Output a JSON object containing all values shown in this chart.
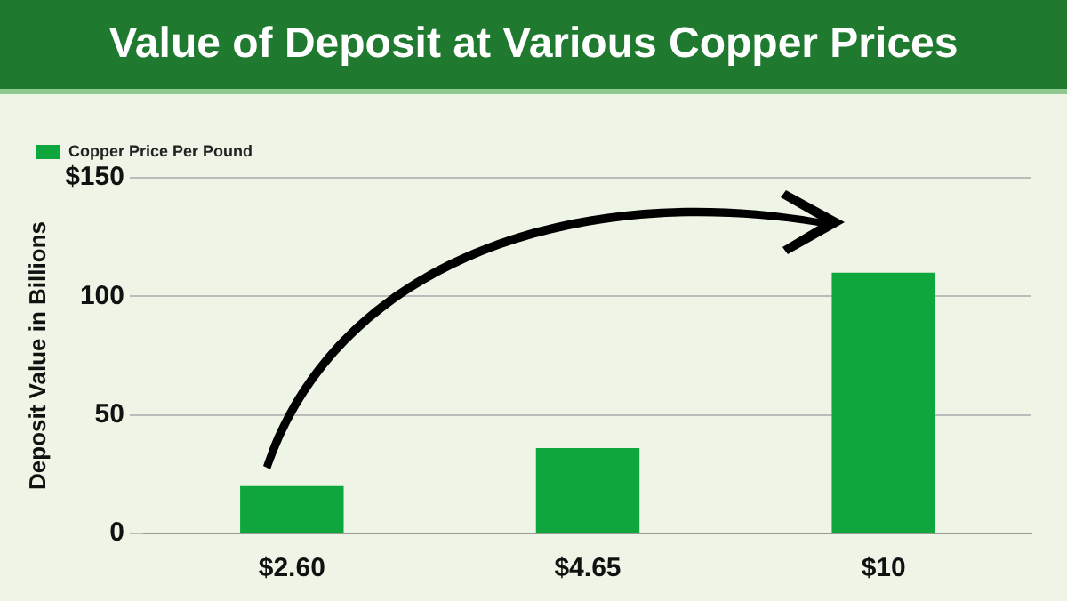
{
  "chart_data": {
    "type": "bar",
    "title": "Value of Deposit at Various Copper Prices",
    "ylabel": "Deposit Value in Billions",
    "categories": [
      "$2.60",
      "$4.65",
      "$10"
    ],
    "series": [
      {
        "name": "Copper Price Per Pound",
        "color": "#0ea63d",
        "values": [
          20,
          36,
          110
        ]
      }
    ],
    "ylim": [
      0,
      150
    ],
    "yticks": [
      0,
      50,
      100,
      {
        "value": 150,
        "label": "$150"
      }
    ],
    "grid": "y",
    "legend": "top left"
  }
}
